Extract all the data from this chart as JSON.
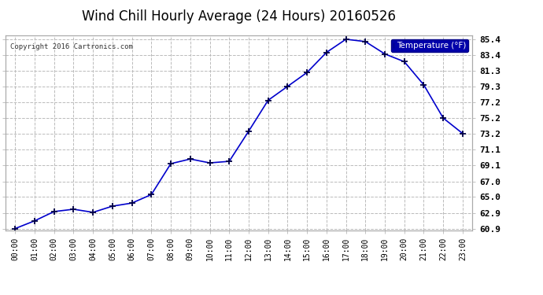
{
  "title": "Wind Chill Hourly Average (24 Hours) 20160526",
  "copyright_text": "Copyright 2016 Cartronics.com",
  "legend_label": "Temperature (°F)",
  "x_labels": [
    "00:00",
    "01:00",
    "02:00",
    "03:00",
    "04:00",
    "05:00",
    "06:00",
    "07:00",
    "08:00",
    "09:00",
    "10:00",
    "11:00",
    "12:00",
    "13:00",
    "14:00",
    "15:00",
    "16:00",
    "17:00",
    "18:00",
    "19:00",
    "20:00",
    "21:00",
    "22:00",
    "23:00"
  ],
  "y_values": [
    60.9,
    61.9,
    63.1,
    63.4,
    63.0,
    63.8,
    64.2,
    65.3,
    69.3,
    69.9,
    69.4,
    69.6,
    73.5,
    77.5,
    79.3,
    81.1,
    83.7,
    85.4,
    85.1,
    83.5,
    82.5,
    79.5,
    75.2,
    73.2
  ],
  "ylim_min": 60.9,
  "ylim_max": 85.4,
  "yticks": [
    60.9,
    62.9,
    65.0,
    67.0,
    69.1,
    71.1,
    73.2,
    75.2,
    77.2,
    79.3,
    81.3,
    83.4,
    85.4
  ],
  "ytick_labels": [
    "60.9",
    "62.9",
    "65.0",
    "67.0",
    "69.1",
    "71.1",
    "73.2",
    "75.2",
    "77.2",
    "79.3",
    "81.3",
    "83.4",
    "85.4"
  ],
  "line_color": "#0000cc",
  "marker_color": "#000044",
  "bg_color": "#ffffff",
  "grid_color": "#bbbbbb",
  "title_fontsize": 12,
  "legend_bg": "#0000aa",
  "legend_fg": "#ffffff",
  "border_color": "#aaaaaa"
}
